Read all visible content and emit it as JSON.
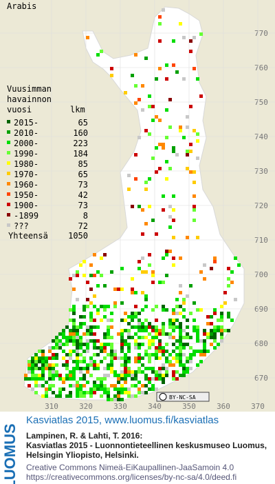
{
  "map": {
    "title": "Arabis",
    "legend": {
      "heading": [
        "Vuusimman",
        "havainnon"
      ],
      "year_label": "vuosi",
      "count_label": "lkm",
      "entries": [
        {
          "label": "2015-",
          "count": 65,
          "color": "#006400"
        },
        {
          "label": "2010-",
          "count": 160,
          "color": "#00a000"
        },
        {
          "label": "2000-",
          "count": 223,
          "color": "#00dd00"
        },
        {
          "label": "1990-",
          "count": 184,
          "color": "#66ff33"
        },
        {
          "label": "1980-",
          "count": 85,
          "color": "#ffff00"
        },
        {
          "label": "1970-",
          "count": 65,
          "color": "#ffcc00"
        },
        {
          "label": "1960-",
          "count": 73,
          "color": "#ff8800"
        },
        {
          "label": "1950-",
          "count": 42,
          "color": "#ff4400"
        },
        {
          "label": "1900-",
          "count": 73,
          "color": "#cc0000"
        },
        {
          "label": "-1899",
          "count": 8,
          "color": "#880000"
        },
        {
          "label": "???",
          "count": 72,
          "color": "#c8c8c8"
        }
      ],
      "total_label": "Yhteensä",
      "total": 1050
    },
    "y_grid": [
      "770",
      "760",
      "750",
      "740",
      "730",
      "720",
      "710",
      "700",
      "690",
      "680",
      "670"
    ],
    "x_grid": [
      "310",
      "320",
      "330",
      "340",
      "350",
      "360",
      "370"
    ],
    "license_badge": "BY-NC-SA"
  },
  "footer": {
    "logo": "LUOMUS",
    "headline": "Kasviatlas 2015, www.luomus.fi/kasviatlas",
    "citation": [
      "Lampinen, R. & Lahti, T. 2016:",
      "Kasviatlas 2015 - Luonnontieteellinen keskusmuseo Luomus,",
      "Helsingin Yliopisto, Helsinki."
    ],
    "license": [
      "Creative Commons Nimeä-EiKaupallinen-JaaSamoin 4.0",
      "https://creativecommons.org/licenses/by-nc-sa/4.0/deed.fi"
    ]
  }
}
